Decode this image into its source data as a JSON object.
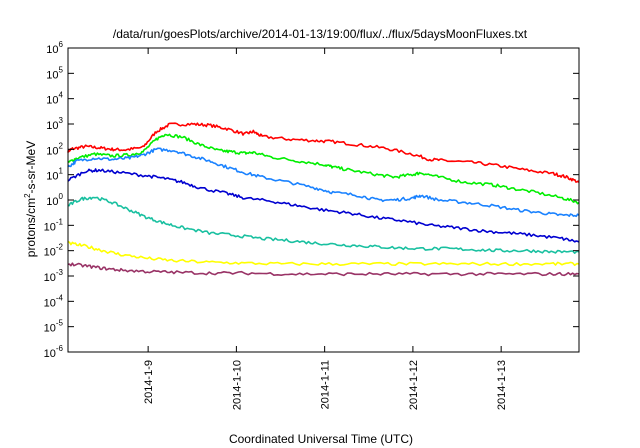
{
  "chart_data": {
    "type": "line",
    "title": "/data/run/goesPlots/archive/2014-01-13/19:00/flux/../flux/5daysMoonFluxes.txt",
    "xlabel": "Coordinated Universal Time (UTC)",
    "ylabel_parts": {
      "pre": "protons/cm",
      "sup": "2",
      "post": "-s-sr-MeV"
    },
    "ylabel": "protons/cm2-s-sr-MeV",
    "y_scale": "log",
    "ylim_exponents": [
      -6,
      6
    ],
    "y_ticks": [
      {
        "base": "10",
        "exp": "-6"
      },
      {
        "base": "10",
        "exp": "-5"
      },
      {
        "base": "10",
        "exp": "-4"
      },
      {
        "base": "10",
        "exp": "-3"
      },
      {
        "base": "10",
        "exp": "-2"
      },
      {
        "base": "10",
        "exp": "-1"
      },
      {
        "base": "10",
        "exp": "0"
      },
      {
        "base": "10",
        "exp": "1"
      },
      {
        "base": "10",
        "exp": "2"
      },
      {
        "base": "10",
        "exp": "3"
      },
      {
        "base": "10",
        "exp": "4"
      },
      {
        "base": "10",
        "exp": "5"
      },
      {
        "base": "10",
        "exp": "6"
      }
    ],
    "xlim": [
      "2014-01-08T02:00",
      "2014-01-13T21:00"
    ],
    "x_ticks": [
      {
        "label": "2014-1-9",
        "t": 0.908
      },
      {
        "label": "2014-1-10",
        "t": 1.908
      },
      {
        "label": "2014-1-11",
        "t": 2.908
      },
      {
        "label": "2014-1-12",
        "t": 3.908
      },
      {
        "label": "2014-1-13",
        "t": 4.908
      }
    ],
    "x_days_span": 5.79,
    "grid": false,
    "legend": "none",
    "series": [
      {
        "color": "#ff0000",
        "points": [
          [
            0.0,
            85
          ],
          [
            0.05,
            105
          ],
          [
            0.2,
            130
          ],
          [
            0.35,
            115
          ],
          [
            0.5,
            100
          ],
          [
            0.65,
            95
          ],
          [
            0.85,
            120
          ],
          [
            1.0,
            500
          ],
          [
            1.15,
            950
          ],
          [
            1.4,
            1000
          ],
          [
            1.6,
            900
          ],
          [
            1.8,
            650
          ],
          [
            2.0,
            400
          ],
          [
            2.1,
            500
          ],
          [
            2.2,
            320
          ],
          [
            2.5,
            250
          ],
          [
            2.8,
            220
          ],
          [
            3.0,
            200
          ],
          [
            3.3,
            150
          ],
          [
            3.6,
            110
          ],
          [
            3.9,
            65
          ],
          [
            4.1,
            40
          ],
          [
            4.3,
            35
          ],
          [
            4.6,
            30
          ],
          [
            4.9,
            22
          ],
          [
            5.2,
            15
          ],
          [
            5.5,
            11
          ],
          [
            5.65,
            8
          ],
          [
            5.79,
            5
          ]
        ]
      },
      {
        "color": "#00ee00",
        "points": [
          [
            0.0,
            30
          ],
          [
            0.1,
            45
          ],
          [
            0.3,
            65
          ],
          [
            0.5,
            55
          ],
          [
            0.7,
            60
          ],
          [
            0.85,
            80
          ],
          [
            1.0,
            250
          ],
          [
            1.1,
            400
          ],
          [
            1.3,
            300
          ],
          [
            1.5,
            150
          ],
          [
            1.7,
            90
          ],
          [
            1.85,
            80
          ],
          [
            2.0,
            70
          ],
          [
            2.1,
            75
          ],
          [
            2.3,
            50
          ],
          [
            2.6,
            35
          ],
          [
            2.9,
            25
          ],
          [
            3.0,
            20
          ],
          [
            3.2,
            15
          ],
          [
            3.5,
            10
          ],
          [
            3.7,
            8
          ],
          [
            3.9,
            10
          ],
          [
            4.0,
            12
          ],
          [
            4.2,
            8
          ],
          [
            4.5,
            5
          ],
          [
            4.8,
            4
          ],
          [
            5.0,
            3
          ],
          [
            5.3,
            2
          ],
          [
            5.6,
            1.2
          ],
          [
            5.79,
            0.8
          ]
        ]
      },
      {
        "color": "#1a82ff",
        "points": [
          [
            0.0,
            20
          ],
          [
            0.1,
            35
          ],
          [
            0.3,
            45
          ],
          [
            0.5,
            40
          ],
          [
            0.7,
            45
          ],
          [
            0.85,
            60
          ],
          [
            1.0,
            100
          ],
          [
            1.2,
            90
          ],
          [
            1.4,
            55
          ],
          [
            1.6,
            35
          ],
          [
            1.8,
            20
          ],
          [
            2.0,
            12
          ],
          [
            2.2,
            8
          ],
          [
            2.5,
            5
          ],
          [
            2.8,
            3
          ],
          [
            3.0,
            2
          ],
          [
            3.3,
            1.5
          ],
          [
            3.5,
            1
          ],
          [
            3.7,
            1
          ],
          [
            3.9,
            1.2
          ],
          [
            4.0,
            1.5
          ],
          [
            4.2,
            1
          ],
          [
            4.5,
            0.8
          ],
          [
            4.8,
            0.6
          ],
          [
            5.1,
            0.4
          ],
          [
            5.4,
            0.3
          ],
          [
            5.6,
            0.25
          ],
          [
            5.79,
            0.25
          ]
        ]
      },
      {
        "color": "#0000d0",
        "points": [
          [
            0.0,
            6
          ],
          [
            0.2,
            14
          ],
          [
            0.35,
            15
          ],
          [
            0.6,
            12
          ],
          [
            0.9,
            9
          ],
          [
            1.1,
            7
          ],
          [
            1.3,
            5
          ],
          [
            1.5,
            3
          ],
          [
            1.8,
            1.8
          ],
          [
            2.0,
            1.2
          ],
          [
            2.3,
            0.9
          ],
          [
            2.6,
            0.6
          ],
          [
            2.9,
            0.4
          ],
          [
            3.2,
            0.3
          ],
          [
            3.5,
            0.2
          ],
          [
            3.8,
            0.15
          ],
          [
            4.1,
            0.1
          ],
          [
            4.4,
            0.08
          ],
          [
            4.7,
            0.06
          ],
          [
            5.0,
            0.05
          ],
          [
            5.3,
            0.04
          ],
          [
            5.6,
            0.03
          ],
          [
            5.79,
            0.022
          ]
        ]
      },
      {
        "color": "#19c0a0",
        "points": [
          [
            0.0,
            0.6
          ],
          [
            0.15,
            1.1
          ],
          [
            0.3,
            1.3
          ],
          [
            0.5,
            0.8
          ],
          [
            0.7,
            0.4
          ],
          [
            0.9,
            0.2
          ],
          [
            1.1,
            0.12
          ],
          [
            1.3,
            0.08
          ],
          [
            1.6,
            0.05
          ],
          [
            1.9,
            0.04
          ],
          [
            2.2,
            0.03
          ],
          [
            2.5,
            0.025
          ],
          [
            2.8,
            0.02
          ],
          [
            3.1,
            0.017
          ],
          [
            3.4,
            0.015
          ],
          [
            3.7,
            0.013
          ],
          [
            4.0,
            0.012
          ],
          [
            4.3,
            0.012
          ],
          [
            4.6,
            0.011
          ],
          [
            4.9,
            0.01
          ],
          [
            5.2,
            0.01
          ],
          [
            5.5,
            0.009
          ],
          [
            5.79,
            0.009
          ]
        ]
      },
      {
        "color": "#ffff00",
        "points": [
          [
            0.0,
            0.02
          ],
          [
            0.2,
            0.015
          ],
          [
            0.4,
            0.01
          ],
          [
            0.6,
            0.007
          ],
          [
            0.9,
            0.005
          ],
          [
            1.2,
            0.004
          ],
          [
            1.6,
            0.0035
          ],
          [
            2.0,
            0.0032
          ],
          [
            2.5,
            0.003
          ],
          [
            3.0,
            0.003
          ],
          [
            3.5,
            0.003
          ],
          [
            4.0,
            0.003
          ],
          [
            4.5,
            0.003
          ],
          [
            5.0,
            0.003
          ],
          [
            5.5,
            0.003
          ],
          [
            5.79,
            0.003
          ]
        ]
      },
      {
        "color": "#993366",
        "points": [
          [
            0.0,
            0.003
          ],
          [
            0.2,
            0.0025
          ],
          [
            0.4,
            0.002
          ],
          [
            0.6,
            0.0017
          ],
          [
            0.9,
            0.0015
          ],
          [
            1.2,
            0.0014
          ],
          [
            1.6,
            0.0013
          ],
          [
            2.0,
            0.0013
          ],
          [
            2.5,
            0.0012
          ],
          [
            3.0,
            0.0012
          ],
          [
            3.5,
            0.0012
          ],
          [
            4.0,
            0.0012
          ],
          [
            4.5,
            0.0012
          ],
          [
            5.0,
            0.0012
          ],
          [
            5.5,
            0.0012
          ],
          [
            5.79,
            0.0012
          ]
        ]
      }
    ]
  }
}
